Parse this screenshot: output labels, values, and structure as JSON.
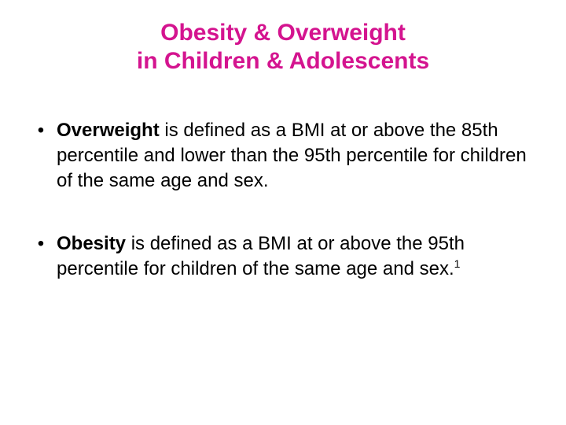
{
  "title": {
    "line1": "Obesity & Overweight",
    "line2": "in Children & Adolescents"
  },
  "bullets": [
    {
      "marker": "•",
      "term": "Overweight",
      "text": " is defined as a BMI at or above the 85th percentile and lower than the 95th percentile for children of the same age and sex."
    },
    {
      "marker": "•",
      "term": "Obesity",
      "text": " is defined as a BMI at or above the 95th percentile for children of the same age and sex.",
      "footnote": "1"
    }
  ],
  "colors": {
    "title": "#d4148f",
    "body_text": "#000000",
    "background": "#ffffff"
  }
}
